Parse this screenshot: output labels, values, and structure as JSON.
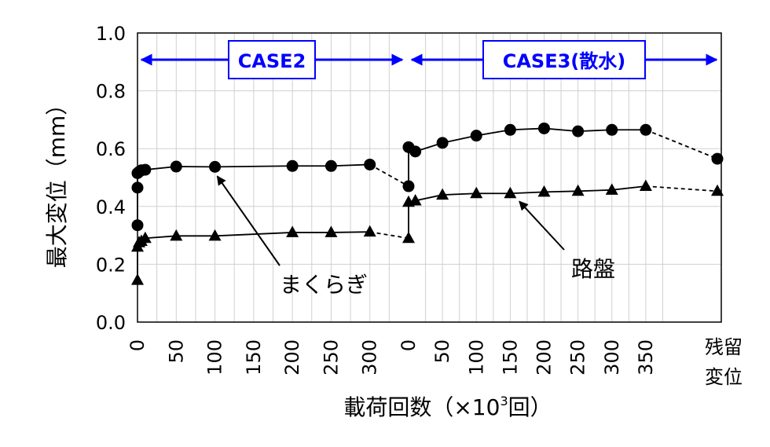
{
  "chart_data": {
    "type": "line",
    "ylabel": "最大変位（mm）",
    "xlabel_main": "載荷回数（×10",
    "xlabel_sup": "3",
    "xlabel_end": "回）",
    "ylim": [
      0,
      1.0
    ],
    "yticks": [
      "0.0",
      "0.2",
      "0.4",
      "0.6",
      "0.8",
      "1.0"
    ],
    "grid": true,
    "sections": [
      {
        "label": "CASE2",
        "ticks": [
          "0",
          "50",
          "100",
          "150",
          "200",
          "250",
          "300"
        ],
        "xmax": 350
      },
      {
        "label": "CASE3(散水)",
        "ticks": [
          "0",
          "50",
          "100",
          "150",
          "200",
          "250",
          "300",
          "350"
        ],
        "xmax": 400
      }
    ],
    "residual_label": [
      "残留",
      "変位"
    ],
    "series": [
      {
        "name": "まくらぎ",
        "marker": "circle",
        "case2": {
          "x": [
            0,
            0,
            0,
            2,
            5,
            10,
            50,
            100,
            200,
            250,
            300
          ],
          "y": [
            0.335,
            0.465,
            0.515,
            0.52,
            0.525,
            0.527,
            0.538,
            0.537,
            0.54,
            0.54,
            0.545
          ]
        },
        "case2_residual": 0.47,
        "case3": {
          "x": [
            0,
            10,
            50,
            100,
            150,
            200,
            250,
            300,
            350
          ],
          "y": [
            0.605,
            0.59,
            0.62,
            0.645,
            0.665,
            0.67,
            0.66,
            0.665,
            0.665
          ]
        },
        "case3_residual": 0.565
      },
      {
        "name": "路盤",
        "marker": "triangle",
        "case2": {
          "x": [
            0,
            0,
            2,
            5,
            10,
            50,
            100,
            200,
            250,
            300
          ],
          "y": [
            0.145,
            0.26,
            0.275,
            0.28,
            0.29,
            0.298,
            0.298,
            0.31,
            0.31,
            0.312
          ]
        },
        "case2_residual": 0.29,
        "case3": {
          "x": [
            0,
            10,
            50,
            100,
            150,
            200,
            250,
            300,
            350
          ],
          "y": [
            0.415,
            0.42,
            0.44,
            0.445,
            0.445,
            0.45,
            0.453,
            0.457,
            0.47
          ]
        },
        "case3_residual": 0.453
      }
    ],
    "annotations": [
      {
        "text": "まくらぎ",
        "series": "まくらぎ",
        "section": 0,
        "x": 100
      },
      {
        "text": "路盤",
        "series": "路盤",
        "section": 1,
        "x": 160
      }
    ]
  }
}
